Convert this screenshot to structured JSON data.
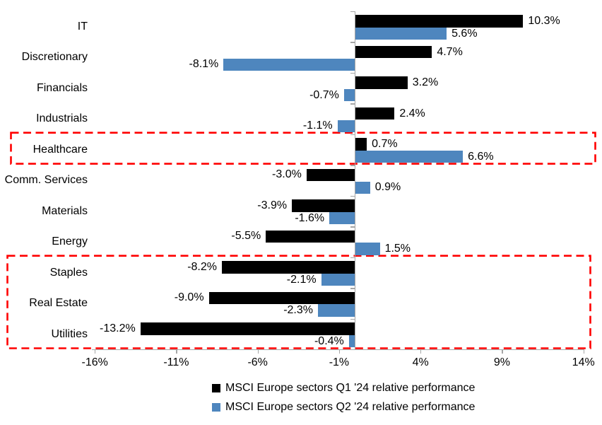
{
  "chart_data": {
    "type": "bar",
    "orientation": "horizontal",
    "title": "",
    "categories": [
      "IT",
      "Discretionary",
      "Financials",
      "Industrials",
      "Healthcare",
      "Comm. Services",
      "Materials",
      "Energy",
      "Staples",
      "Real Estate",
      "Utilities"
    ],
    "series": [
      {
        "name": "MSCI Europe sectors Q1 '24 relative performance",
        "color": "#000000",
        "values": [
          10.3,
          4.7,
          3.2,
          2.4,
          0.7,
          -3.0,
          -3.9,
          -5.5,
          -8.2,
          -9.0,
          -13.2
        ],
        "labels": [
          "10.3%",
          "4.7%",
          "3.2%",
          "2.4%",
          "0.7%",
          "-3.0%",
          "-3.9%",
          "-5.5%",
          "-8.2%",
          "-9.0%",
          "-13.2%"
        ]
      },
      {
        "name": "MSCI Europe sectors Q2 '24 relative performance",
        "color": "#4E86BE",
        "values": [
          5.6,
          -8.1,
          -0.7,
          -1.1,
          6.6,
          0.9,
          -1.6,
          1.5,
          -2.1,
          -2.3,
          -0.4
        ],
        "labels": [
          "5.6%",
          "-8.1%",
          "-0.7%",
          "-1.1%",
          "6.6%",
          "0.9%",
          "-1.6%",
          "1.5%",
          "-2.1%",
          "-2.3%",
          "-0.4%"
        ]
      }
    ],
    "x_axis": {
      "tick_labels": [
        "-16%",
        "-11%",
        "-6%",
        "-1%",
        "4%",
        "9%",
        "14%"
      ],
      "tick_values": [
        -16,
        -11,
        -6,
        -1,
        4,
        9,
        14
      ],
      "range": [
        -16.2,
        14.0
      ]
    },
    "grid": false,
    "legend_position": "bottom",
    "data_labels": "outside-end, one decimal, percent",
    "highlights": [
      {
        "categories": [
          "Healthcare"
        ],
        "style": "dashed",
        "color": "#FF0000"
      },
      {
        "categories": [
          "Staples",
          "Real Estate",
          "Utilities"
        ],
        "style": "dashed",
        "color": "#FF0000"
      }
    ]
  },
  "colors": {
    "q1_bar": "#000000",
    "q2_bar": "#4E86BE",
    "axis": "#A6A6A6",
    "highlight": "#FF0000",
    "background": "#FFFFFF",
    "text": "#000000"
  }
}
